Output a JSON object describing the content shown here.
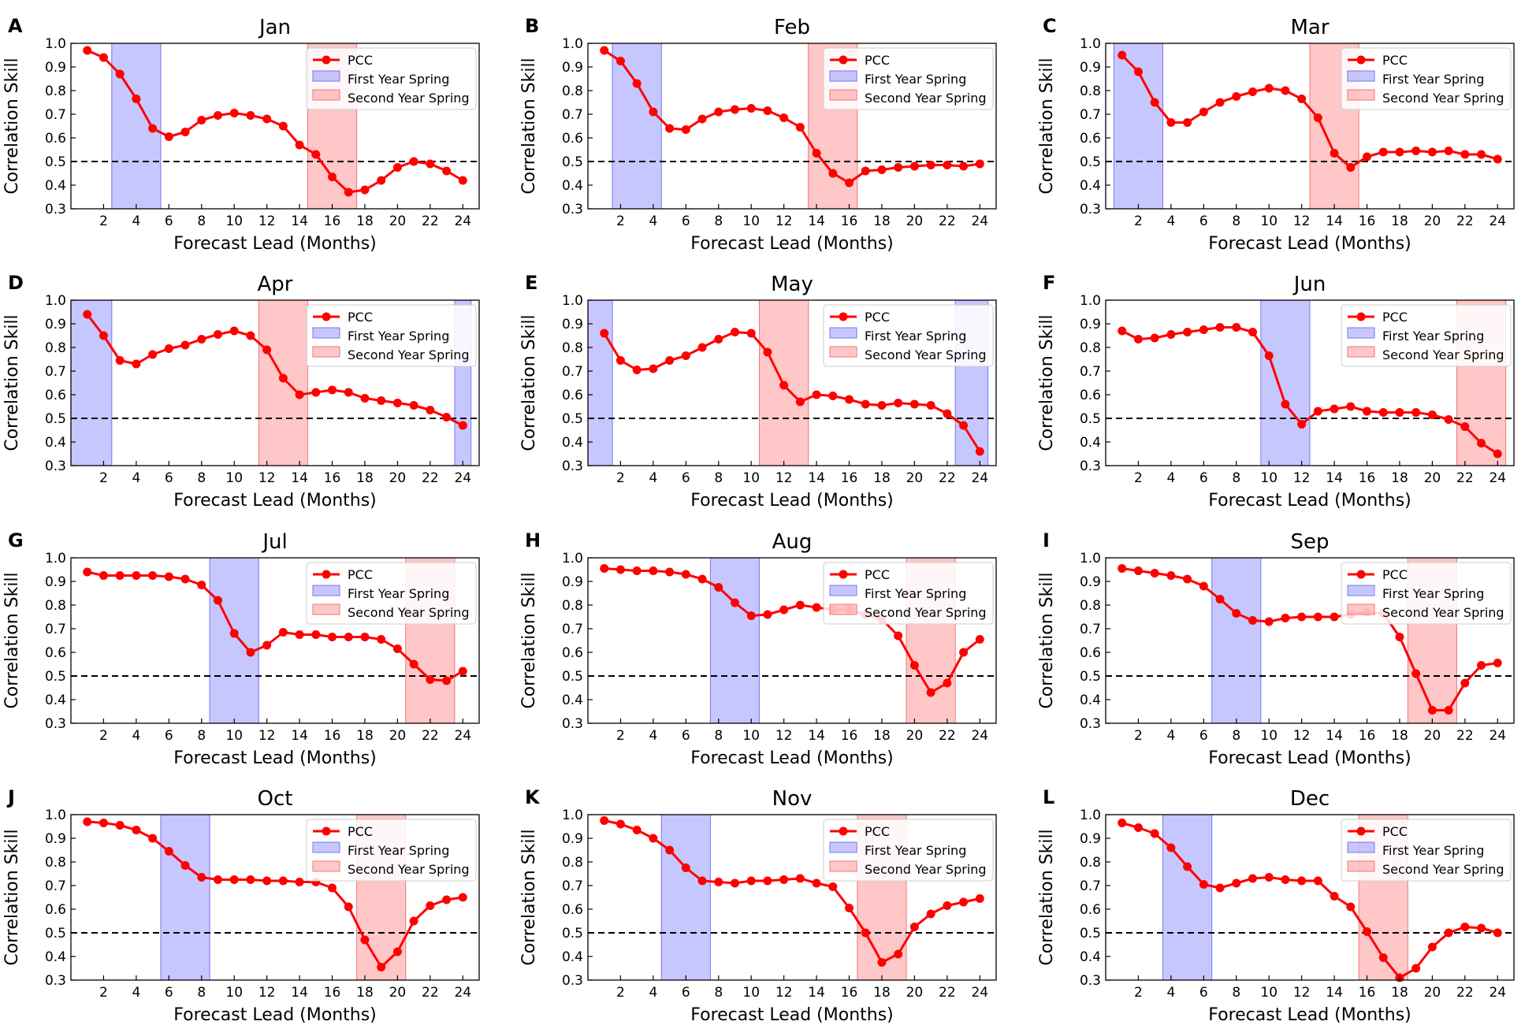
{
  "figure": {
    "description_free": true
  },
  "common": {
    "xlabel": "Forecast Lead (Months)",
    "ylabel": "Correlation Skill",
    "xticks": [
      2,
      4,
      6,
      8,
      10,
      12,
      14,
      16,
      18,
      20,
      22,
      24
    ],
    "yticks": [
      "0.3",
      "0.4",
      "0.5",
      "0.6",
      "0.7",
      "0.8",
      "0.9",
      "1.0"
    ],
    "legend": [
      "PCC",
      "First Year Spring",
      "Second Year Spring"
    ],
    "colors": {
      "line": "#ff0000",
      "first_spring": "#9999ff",
      "second_spring": "#ff9999",
      "threshold": "#000000"
    }
  },
  "chart_data": [
    {
      "type": "line",
      "panel": "A",
      "title": "Jan",
      "xlabel": "Forecast Lead (Months)",
      "ylabel": "Correlation Skill",
      "xlim": [
        0,
        25
      ],
      "ylim": [
        0.3,
        1.0
      ],
      "threshold": 0.5,
      "legend_position": "top-right",
      "first_spring": [
        [
          2.5,
          5.5
        ]
      ],
      "second_spring": [
        [
          14.5,
          17.5
        ]
      ],
      "series": [
        {
          "name": "PCC",
          "x": [
            1,
            2,
            3,
            4,
            5,
            6,
            7,
            8,
            9,
            10,
            11,
            12,
            13,
            14,
            15,
            16,
            17,
            18,
            19,
            20,
            21,
            22,
            23,
            24
          ],
          "values": [
            0.97,
            0.94,
            0.87,
            0.765,
            0.64,
            0.605,
            0.625,
            0.675,
            0.695,
            0.705,
            0.695,
            0.68,
            0.65,
            0.57,
            0.53,
            0.435,
            0.37,
            0.38,
            0.42,
            0.475,
            0.5,
            0.49,
            0.46,
            0.42
          ]
        }
      ]
    },
    {
      "type": "line",
      "panel": "B",
      "title": "Feb",
      "xlabel": "Forecast Lead (Months)",
      "ylabel": "Correlation Skill",
      "xlim": [
        0,
        25
      ],
      "ylim": [
        0.3,
        1.0
      ],
      "threshold": 0.5,
      "legend_position": "top-right",
      "first_spring": [
        [
          1.5,
          4.5
        ]
      ],
      "second_spring": [
        [
          13.5,
          16.5
        ]
      ],
      "series": [
        {
          "name": "PCC",
          "x": [
            1,
            2,
            3,
            4,
            5,
            6,
            7,
            8,
            9,
            10,
            11,
            12,
            13,
            14,
            15,
            16,
            17,
            18,
            19,
            20,
            21,
            22,
            23,
            24
          ],
          "values": [
            0.97,
            0.925,
            0.83,
            0.71,
            0.64,
            0.635,
            0.68,
            0.71,
            0.72,
            0.725,
            0.715,
            0.685,
            0.645,
            0.535,
            0.45,
            0.41,
            0.46,
            0.465,
            0.475,
            0.48,
            0.485,
            0.485,
            0.48,
            0.49
          ]
        }
      ]
    },
    {
      "type": "line",
      "panel": "C",
      "title": "Mar",
      "xlabel": "Forecast Lead (Months)",
      "ylabel": "Correlation Skill",
      "xlim": [
        0,
        25
      ],
      "ylim": [
        0.3,
        1.0
      ],
      "threshold": 0.5,
      "legend_position": "top-right",
      "first_spring": [
        [
          0.5,
          3.5
        ]
      ],
      "second_spring": [
        [
          12.5,
          15.5
        ]
      ],
      "series": [
        {
          "name": "PCC",
          "x": [
            1,
            2,
            3,
            4,
            5,
            6,
            7,
            8,
            9,
            10,
            11,
            12,
            13,
            14,
            15,
            16,
            17,
            18,
            19,
            20,
            21,
            22,
            23,
            24
          ],
          "values": [
            0.95,
            0.88,
            0.75,
            0.665,
            0.665,
            0.71,
            0.75,
            0.775,
            0.795,
            0.81,
            0.8,
            0.765,
            0.685,
            0.535,
            0.475,
            0.52,
            0.54,
            0.54,
            0.545,
            0.54,
            0.545,
            0.53,
            0.53,
            0.51
          ]
        }
      ]
    },
    {
      "type": "line",
      "panel": "D",
      "title": "Apr",
      "xlabel": "Forecast Lead (Months)",
      "ylabel": "Correlation Skill",
      "xlim": [
        0,
        25
      ],
      "ylim": [
        0.3,
        1.0
      ],
      "threshold": 0.5,
      "legend_position": "top-right",
      "first_spring": [
        [
          0.0,
          2.5
        ],
        [
          23.5,
          24.5
        ]
      ],
      "second_spring": [
        [
          11.5,
          14.5
        ]
      ],
      "series": [
        {
          "name": "PCC",
          "x": [
            1,
            2,
            3,
            4,
            5,
            6,
            7,
            8,
            9,
            10,
            11,
            12,
            13,
            14,
            15,
            16,
            17,
            18,
            19,
            20,
            21,
            22,
            23,
            24
          ],
          "values": [
            0.94,
            0.85,
            0.745,
            0.73,
            0.77,
            0.795,
            0.81,
            0.835,
            0.855,
            0.87,
            0.85,
            0.79,
            0.67,
            0.6,
            0.61,
            0.62,
            0.61,
            0.585,
            0.575,
            0.565,
            0.555,
            0.535,
            0.505,
            0.47
          ]
        }
      ]
    },
    {
      "type": "line",
      "panel": "E",
      "title": "May",
      "xlabel": "Forecast Lead (Months)",
      "ylabel": "Correlation Skill",
      "xlim": [
        0,
        25
      ],
      "ylim": [
        0.3,
        1.0
      ],
      "threshold": 0.5,
      "legend_position": "top-right",
      "first_spring": [
        [
          0.0,
          1.5
        ],
        [
          22.5,
          24.5
        ]
      ],
      "second_spring": [
        [
          10.5,
          13.5
        ]
      ],
      "series": [
        {
          "name": "PCC",
          "x": [
            1,
            2,
            3,
            4,
            5,
            6,
            7,
            8,
            9,
            10,
            11,
            12,
            13,
            14,
            15,
            16,
            17,
            18,
            19,
            20,
            21,
            22,
            23,
            24
          ],
          "values": [
            0.86,
            0.745,
            0.705,
            0.71,
            0.745,
            0.765,
            0.8,
            0.835,
            0.865,
            0.86,
            0.78,
            0.64,
            0.57,
            0.6,
            0.595,
            0.58,
            0.56,
            0.555,
            0.565,
            0.56,
            0.555,
            0.52,
            0.47,
            0.36
          ]
        }
      ]
    },
    {
      "type": "line",
      "panel": "F",
      "title": "Jun",
      "xlabel": "Forecast Lead (Months)",
      "ylabel": "Correlation Skill",
      "xlim": [
        0,
        25
      ],
      "ylim": [
        0.3,
        1.0
      ],
      "threshold": 0.5,
      "legend_position": "top-right",
      "first_spring": [
        [
          9.5,
          12.5
        ]
      ],
      "second_spring": [
        [
          21.5,
          24.5
        ]
      ],
      "series": [
        {
          "name": "PCC",
          "x": [
            1,
            2,
            3,
            4,
            5,
            6,
            7,
            8,
            9,
            10,
            11,
            12,
            13,
            14,
            15,
            16,
            17,
            18,
            19,
            20,
            21,
            22,
            23,
            24
          ],
          "values": [
            0.87,
            0.835,
            0.84,
            0.855,
            0.865,
            0.875,
            0.885,
            0.885,
            0.865,
            0.765,
            0.56,
            0.475,
            0.53,
            0.54,
            0.55,
            0.53,
            0.525,
            0.525,
            0.525,
            0.515,
            0.495,
            0.465,
            0.395,
            0.35
          ]
        }
      ]
    },
    {
      "type": "line",
      "panel": "G",
      "title": "Jul",
      "xlabel": "Forecast Lead (Months)",
      "ylabel": "Correlation Skill",
      "xlim": [
        0,
        25
      ],
      "ylim": [
        0.3,
        1.0
      ],
      "threshold": 0.5,
      "legend_position": "top-right",
      "first_spring": [
        [
          8.5,
          11.5
        ]
      ],
      "second_spring": [
        [
          20.5,
          23.5
        ]
      ],
      "series": [
        {
          "name": "PCC",
          "x": [
            1,
            2,
            3,
            4,
            5,
            6,
            7,
            8,
            9,
            10,
            11,
            12,
            13,
            14,
            15,
            16,
            17,
            18,
            19,
            20,
            21,
            22,
            23,
            24
          ],
          "values": [
            0.94,
            0.925,
            0.925,
            0.925,
            0.925,
            0.92,
            0.91,
            0.885,
            0.82,
            0.68,
            0.6,
            0.63,
            0.685,
            0.675,
            0.675,
            0.665,
            0.665,
            0.665,
            0.655,
            0.615,
            0.55,
            0.485,
            0.48,
            0.52
          ]
        }
      ]
    },
    {
      "type": "line",
      "panel": "H",
      "title": "Aug",
      "xlabel": "Forecast Lead (Months)",
      "ylabel": "Correlation Skill",
      "xlim": [
        0,
        25
      ],
      "ylim": [
        0.3,
        1.0
      ],
      "threshold": 0.5,
      "legend_position": "top-right",
      "first_spring": [
        [
          7.5,
          10.5
        ]
      ],
      "second_spring": [
        [
          19.5,
          22.5
        ]
      ],
      "series": [
        {
          "name": "PCC",
          "x": [
            1,
            2,
            3,
            4,
            5,
            6,
            7,
            8,
            9,
            10,
            11,
            12,
            13,
            14,
            15,
            16,
            17,
            18,
            19,
            20,
            21,
            22,
            23,
            24
          ],
          "values": [
            0.955,
            0.95,
            0.945,
            0.945,
            0.94,
            0.93,
            0.91,
            0.875,
            0.81,
            0.755,
            0.76,
            0.78,
            0.8,
            0.79,
            0.78,
            0.78,
            0.76,
            0.74,
            0.67,
            0.545,
            0.43,
            0.47,
            0.6,
            0.655
          ]
        }
      ]
    },
    {
      "type": "line",
      "panel": "I",
      "title": "Sep",
      "xlabel": "Forecast Lead (Months)",
      "ylabel": "Correlation Skill",
      "xlim": [
        0,
        25
      ],
      "ylim": [
        0.3,
        1.0
      ],
      "threshold": 0.5,
      "legend_position": "top-right",
      "first_spring": [
        [
          6.5,
          9.5
        ]
      ],
      "second_spring": [
        [
          18.5,
          21.5
        ]
      ],
      "series": [
        {
          "name": "PCC",
          "x": [
            1,
            2,
            3,
            4,
            5,
            6,
            7,
            8,
            9,
            10,
            11,
            12,
            13,
            14,
            15,
            16,
            17,
            18,
            19,
            20,
            21,
            22,
            23,
            24
          ],
          "values": [
            0.955,
            0.945,
            0.935,
            0.925,
            0.91,
            0.88,
            0.825,
            0.765,
            0.735,
            0.73,
            0.745,
            0.75,
            0.75,
            0.75,
            0.76,
            0.77,
            0.765,
            0.665,
            0.51,
            0.355,
            0.355,
            0.47,
            0.545,
            0.555
          ]
        }
      ]
    },
    {
      "type": "line",
      "panel": "J",
      "title": "Oct",
      "xlabel": "Forecast Lead (Months)",
      "ylabel": "Correlation Skill",
      "xlim": [
        0,
        25
      ],
      "ylim": [
        0.3,
        1.0
      ],
      "threshold": 0.5,
      "legend_position": "top-right",
      "first_spring": [
        [
          5.5,
          8.5
        ]
      ],
      "second_spring": [
        [
          17.5,
          20.5
        ]
      ],
      "series": [
        {
          "name": "PCC",
          "x": [
            1,
            2,
            3,
            4,
            5,
            6,
            7,
            8,
            9,
            10,
            11,
            12,
            13,
            14,
            15,
            16,
            17,
            18,
            19,
            20,
            21,
            22,
            23,
            24
          ],
          "values": [
            0.97,
            0.965,
            0.955,
            0.935,
            0.9,
            0.845,
            0.785,
            0.735,
            0.725,
            0.725,
            0.725,
            0.72,
            0.72,
            0.715,
            0.715,
            0.69,
            0.61,
            0.47,
            0.355,
            0.42,
            0.55,
            0.615,
            0.64,
            0.65
          ]
        }
      ]
    },
    {
      "type": "line",
      "panel": "K",
      "title": "Nov",
      "xlabel": "Forecast Lead (Months)",
      "ylabel": "Correlation Skill",
      "xlim": [
        0,
        25
      ],
      "ylim": [
        0.3,
        1.0
      ],
      "threshold": 0.5,
      "legend_position": "top-right",
      "first_spring": [
        [
          4.5,
          7.5
        ]
      ],
      "second_spring": [
        [
          16.5,
          19.5
        ]
      ],
      "series": [
        {
          "name": "PCC",
          "x": [
            1,
            2,
            3,
            4,
            5,
            6,
            7,
            8,
            9,
            10,
            11,
            12,
            13,
            14,
            15,
            16,
            17,
            18,
            19,
            20,
            21,
            22,
            23,
            24
          ],
          "values": [
            0.975,
            0.96,
            0.935,
            0.9,
            0.85,
            0.775,
            0.72,
            0.715,
            0.71,
            0.72,
            0.72,
            0.725,
            0.73,
            0.71,
            0.695,
            0.605,
            0.5,
            0.375,
            0.41,
            0.525,
            0.58,
            0.615,
            0.63,
            0.645
          ]
        }
      ]
    },
    {
      "type": "line",
      "panel": "L",
      "title": "Dec",
      "xlabel": "Forecast Lead (Months)",
      "ylabel": "Correlation Skill",
      "xlim": [
        0,
        25
      ],
      "ylim": [
        0.3,
        1.0
      ],
      "threshold": 0.5,
      "legend_position": "top-right",
      "first_spring": [
        [
          3.5,
          6.5
        ]
      ],
      "second_spring": [
        [
          15.5,
          18.5
        ]
      ],
      "series": [
        {
          "name": "PCC",
          "x": [
            1,
            2,
            3,
            4,
            5,
            6,
            7,
            8,
            9,
            10,
            11,
            12,
            13,
            14,
            15,
            16,
            17,
            18,
            19,
            20,
            21,
            22,
            23,
            24
          ],
          "values": [
            0.965,
            0.945,
            0.92,
            0.86,
            0.78,
            0.705,
            0.69,
            0.71,
            0.73,
            0.735,
            0.725,
            0.72,
            0.72,
            0.655,
            0.61,
            0.505,
            0.395,
            0.31,
            0.35,
            0.44,
            0.5,
            0.525,
            0.52,
            0.5
          ]
        }
      ]
    }
  ]
}
